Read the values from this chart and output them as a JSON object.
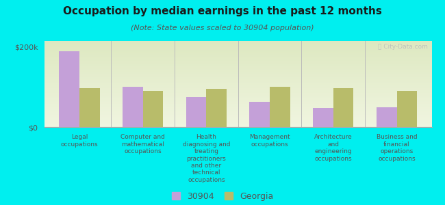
{
  "title": "Occupation by median earnings in the past 12 months",
  "subtitle": "(Note: State values scaled to 30904 population)",
  "background_color": "#00EFEF",
  "plot_bg_top": "#dde8c0",
  "plot_bg_bottom": "#f0f5e0",
  "categories": [
    "Legal\noccupations",
    "Computer and\nmathematical\noccupations",
    "Health\ndiagnosing and\ntreating\npractitioners\nand other\ntechnical\noccupations",
    "Management\noccupations",
    "Architecture\nand\nengineering\noccupations",
    "Business and\nfinancial\noperations\noccupations"
  ],
  "values_30904": [
    190000,
    100000,
    75000,
    63000,
    48000,
    50000
  ],
  "values_georgia": [
    98000,
    90000,
    95000,
    100000,
    98000,
    90000
  ],
  "color_30904": "#c4a0d8",
  "color_georgia": "#b8bc6a",
  "bar_width": 0.32,
  "ylim": [
    0,
    215000
  ],
  "yticks": [
    0,
    200000
  ],
  "ytick_labels": [
    "$0",
    "$200k"
  ],
  "legend_label_30904": "30904",
  "legend_label_georgia": "Georgia",
  "watermark": "Ⓡ City-Data.com"
}
